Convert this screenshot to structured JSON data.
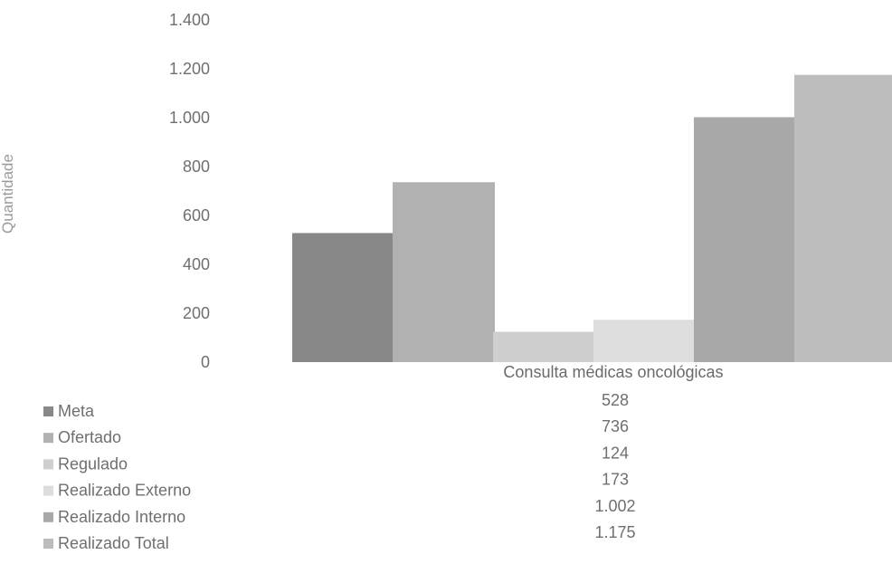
{
  "chart_data": {
    "type": "bar",
    "categories": [
      "Consulta médicas oncológicas"
    ],
    "series": [
      {
        "name": "Meta",
        "values": [
          528
        ],
        "value_label": "528",
        "color": "#888888"
      },
      {
        "name": "Ofertado",
        "values": [
          736
        ],
        "value_label": "736",
        "color": "#b1b1b1"
      },
      {
        "name": "Regulado",
        "values": [
          124
        ],
        "value_label": "124",
        "color": "#cfcfcf"
      },
      {
        "name": "Realizado Externo",
        "values": [
          173
        ],
        "value_label": "173",
        "color": "#dddddd"
      },
      {
        "name": "Realizado Interno",
        "values": [
          1002
        ],
        "value_label": "1.002",
        "color": "#a8a8a8"
      },
      {
        "name": "Realizado Total",
        "values": [
          1175
        ],
        "value_label": "1.175",
        "color": "#bdbdbd"
      }
    ],
    "yticks": [
      {
        "value": 0,
        "label": "0"
      },
      {
        "value": 200,
        "label": "200"
      },
      {
        "value": 400,
        "label": "400"
      },
      {
        "value": 600,
        "label": "600"
      },
      {
        "value": 800,
        "label": "800"
      },
      {
        "value": 1000,
        "label": "1.000"
      },
      {
        "value": 1200,
        "label": "1.200"
      },
      {
        "value": 1400,
        "label": "1.400"
      }
    ],
    "ylim": [
      0,
      1400
    ],
    "ylabel": "Quantidade",
    "xlabel": "",
    "title": "",
    "grid": false,
    "legend": "bottom-left, as a data table below the chart"
  }
}
